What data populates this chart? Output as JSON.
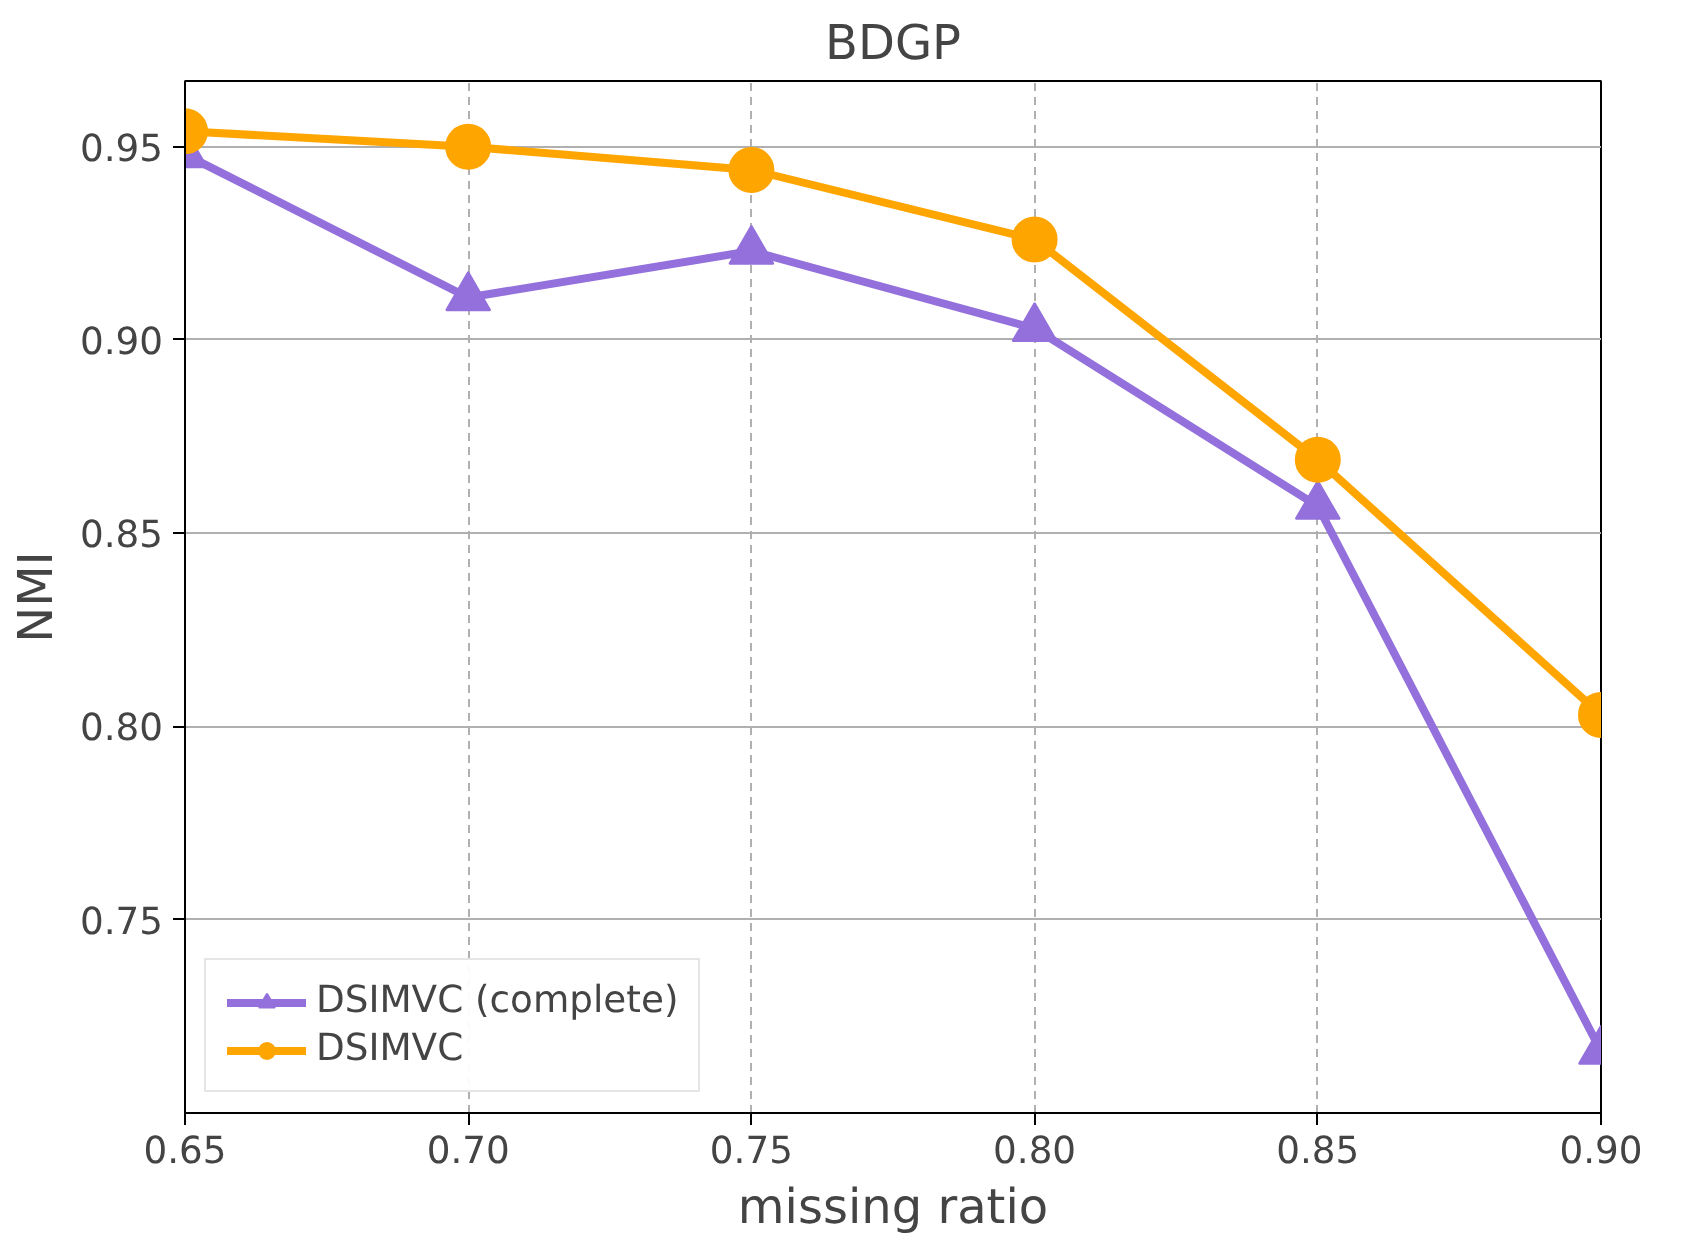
{
  "chart_data": {
    "type": "line",
    "title": "BDGP",
    "xlabel": "missing ratio",
    "ylabel": "NMI",
    "x": [
      0.65,
      0.7,
      0.75,
      0.8,
      0.85,
      0.9
    ],
    "series": [
      {
        "name": "DSIMVC (complete)",
        "color": "#9370db",
        "marker": "triangle",
        "values": [
          0.948,
          0.911,
          0.923,
          0.903,
          0.857,
          0.716
        ]
      },
      {
        "name": "DSIMVC",
        "color": "#ffa500",
        "marker": "circle",
        "values": [
          0.954,
          0.95,
          0.944,
          0.926,
          0.869,
          0.803
        ]
      }
    ],
    "xlim": [
      0.65,
      0.9
    ],
    "xticks": [
      {
        "value": 0.65,
        "label": "0.65"
      },
      {
        "value": 0.7,
        "label": "0.70"
      },
      {
        "value": 0.75,
        "label": "0.75"
      },
      {
        "value": 0.8,
        "label": "0.80"
      },
      {
        "value": 0.85,
        "label": "0.85"
      },
      {
        "value": 0.9,
        "label": "0.90"
      }
    ],
    "ylim": [
      0.7,
      0.967
    ],
    "yticks": [
      {
        "value": 0.75,
        "label": "0.75"
      },
      {
        "value": 0.8,
        "label": "0.80"
      },
      {
        "value": 0.85,
        "label": "0.85"
      },
      {
        "value": 0.9,
        "label": "0.90"
      },
      {
        "value": 0.95,
        "label": "0.95"
      }
    ],
    "grid": true,
    "legend": "bottom left",
    "line_style": "solid"
  }
}
